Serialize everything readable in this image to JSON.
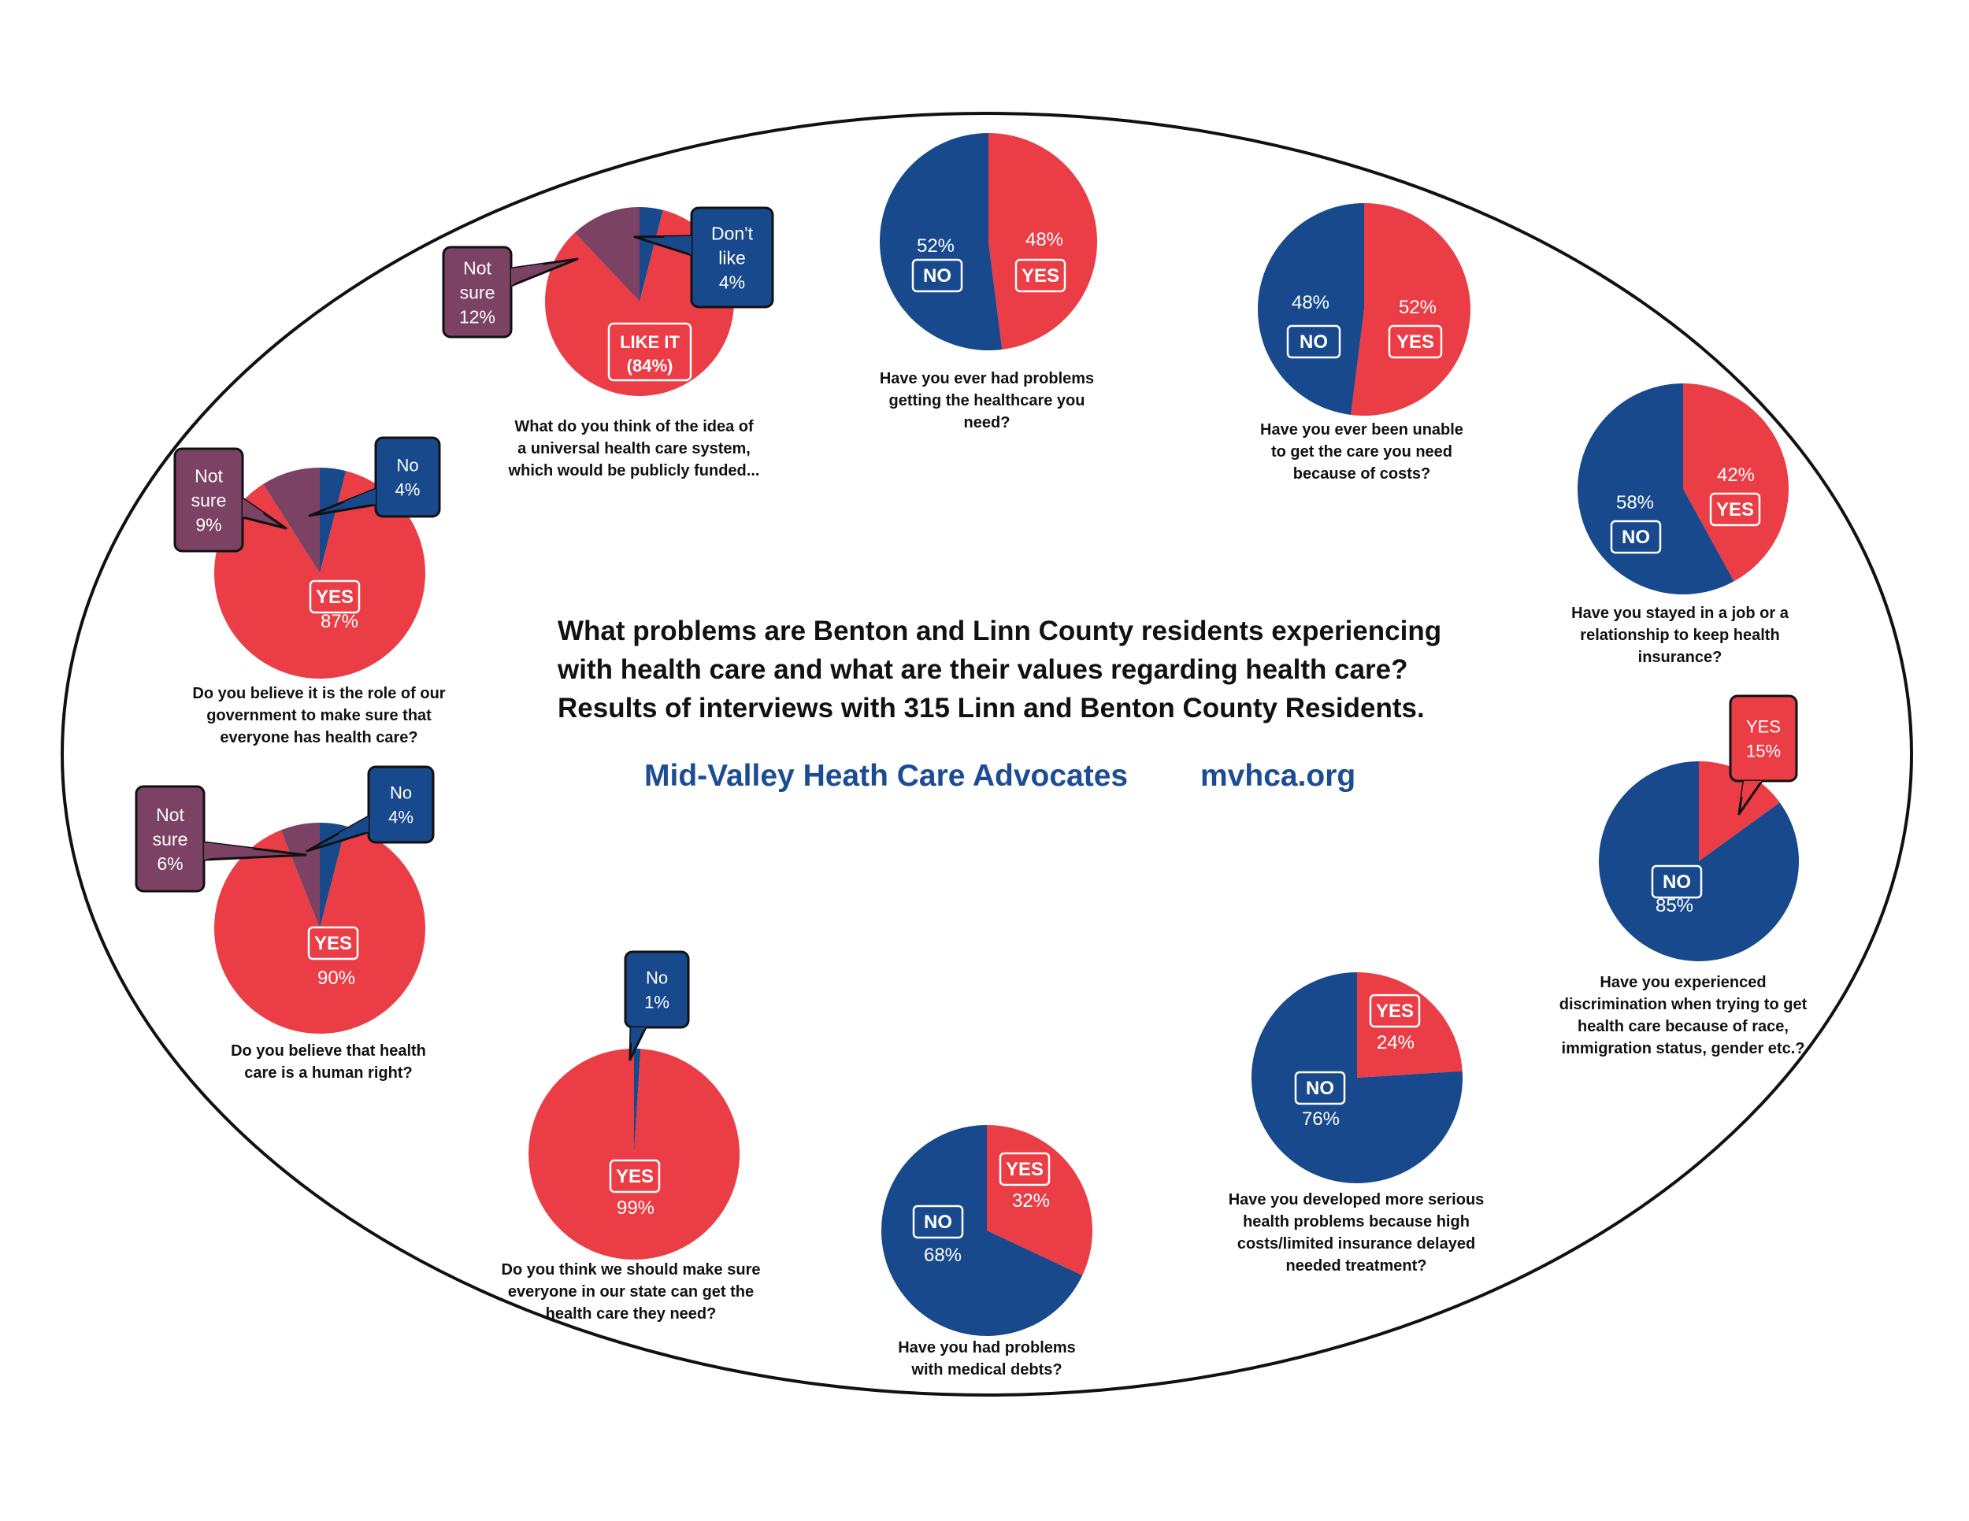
{
  "headline": {
    "line1": "What problems are Benton and Linn County residents experiencing",
    "line2": "with health care and what are their values regarding health care?",
    "line3": "Results of interviews with 315 Linn and Benton County Residents."
  },
  "org_name": "Mid-Valley Heath Care Advocates",
  "org_site": "mvhca.org",
  "colors": {
    "red": "#ea3d45",
    "blue": "#17498c",
    "purple": "#7c4264",
    "text": "#111111",
    "brand": "#1c4c94"
  },
  "chart_data": [
    {
      "id": "universal",
      "type": "pie",
      "question": [
        "What do you think of the idea of",
        "a universal health care system,",
        "which would be publicly funded..."
      ],
      "categories": [
        "LIKE IT",
        "Not sure",
        "Don't like"
      ],
      "values": [
        84,
        12,
        4
      ],
      "slice_labels": [
        {
          "lines": [
            "LIKE IT",
            "(84%)"
          ]
        },
        {
          "lines": [
            "Not",
            "sure",
            "12%"
          ]
        },
        {
          "lines": [
            "Don't",
            "like",
            "4%"
          ]
        }
      ]
    },
    {
      "id": "problems_getting_care",
      "type": "pie",
      "question": [
        "Have you ever had problems",
        "getting the healthcare you",
        "need?"
      ],
      "categories": [
        "YES",
        "NO"
      ],
      "values": [
        48,
        52
      ],
      "slice_labels": [
        {
          "tag": "YES",
          "pct": "48%"
        },
        {
          "tag": "NO",
          "pct": "52%"
        }
      ]
    },
    {
      "id": "unable_costs",
      "type": "pie",
      "question": [
        "Have you ever been unable",
        "to get the care you need",
        "because of costs?"
      ],
      "categories": [
        "YES",
        "NO"
      ],
      "values": [
        52,
        48
      ],
      "slice_labels": [
        {
          "tag": "YES",
          "pct": "52%"
        },
        {
          "tag": "NO",
          "pct": "48%"
        }
      ]
    },
    {
      "id": "job_for_insurance",
      "type": "pie",
      "question": [
        "Have you stayed in a job or a",
        "relationship to keep health",
        "insurance?"
      ],
      "categories": [
        "YES",
        "NO"
      ],
      "values": [
        42,
        58
      ],
      "slice_labels": [
        {
          "tag": "YES",
          "pct": "42%"
        },
        {
          "tag": "NO",
          "pct": "58%"
        }
      ]
    },
    {
      "id": "discrimination",
      "type": "pie",
      "question": [
        "Have you experienced",
        "discrimination when trying to get",
        "health care because of race,",
        "immigration status, gender etc.?"
      ],
      "categories": [
        "YES",
        "NO"
      ],
      "values": [
        15,
        85
      ],
      "slice_labels": [
        {
          "lines": [
            "YES",
            "15%"
          ]
        },
        {
          "tag": "NO",
          "pct": "85%"
        }
      ]
    },
    {
      "id": "serious_problems",
      "type": "pie",
      "question": [
        "Have you developed more serious",
        "health problems because high",
        "costs/limited insurance delayed",
        "needed treatment?"
      ],
      "categories": [
        "YES",
        "NO"
      ],
      "values": [
        24,
        76
      ],
      "slice_labels": [
        {
          "tag": "YES",
          "pct": "24%"
        },
        {
          "tag": "NO",
          "pct": "76%"
        }
      ]
    },
    {
      "id": "medical_debts",
      "type": "pie",
      "question": [
        "Have you had problems",
        "with medical debts?"
      ],
      "categories": [
        "YES",
        "NO"
      ],
      "values": [
        32,
        68
      ],
      "slice_labels": [
        {
          "tag": "YES",
          "pct": "32%"
        },
        {
          "tag": "NO",
          "pct": "68%"
        }
      ]
    },
    {
      "id": "state_everyone",
      "type": "pie",
      "question": [
        "Do you think we should make sure",
        "everyone in our state can get the",
        "health care they need?"
      ],
      "categories": [
        "YES",
        "No"
      ],
      "values": [
        99,
        1
      ],
      "slice_labels": [
        {
          "tag": "YES",
          "pct": "99%"
        },
        {
          "lines": [
            "No",
            "1%"
          ]
        }
      ]
    },
    {
      "id": "human_right",
      "type": "pie",
      "question": [
        "Do you believe that health",
        "care is a human right?"
      ],
      "categories": [
        "YES",
        "Not sure",
        "No"
      ],
      "values": [
        90,
        6,
        4
      ],
      "slice_labels": [
        {
          "tag": "YES",
          "pct": "90%"
        },
        {
          "lines": [
            "Not",
            "sure",
            "6%"
          ]
        },
        {
          "lines": [
            "No",
            "4%"
          ]
        }
      ]
    },
    {
      "id": "government_role",
      "type": "pie",
      "question": [
        "Do you believe it is the role of our",
        "government to make sure that",
        "everyone has health care?"
      ],
      "categories": [
        "YES",
        "Not sure",
        "No"
      ],
      "values": [
        87,
        9,
        4
      ],
      "slice_labels": [
        {
          "tag": "YES",
          "pct": "87%"
        },
        {
          "lines": [
            "Not",
            "sure",
            "9%"
          ]
        },
        {
          "lines": [
            "No",
            "4%"
          ]
        }
      ]
    }
  ]
}
